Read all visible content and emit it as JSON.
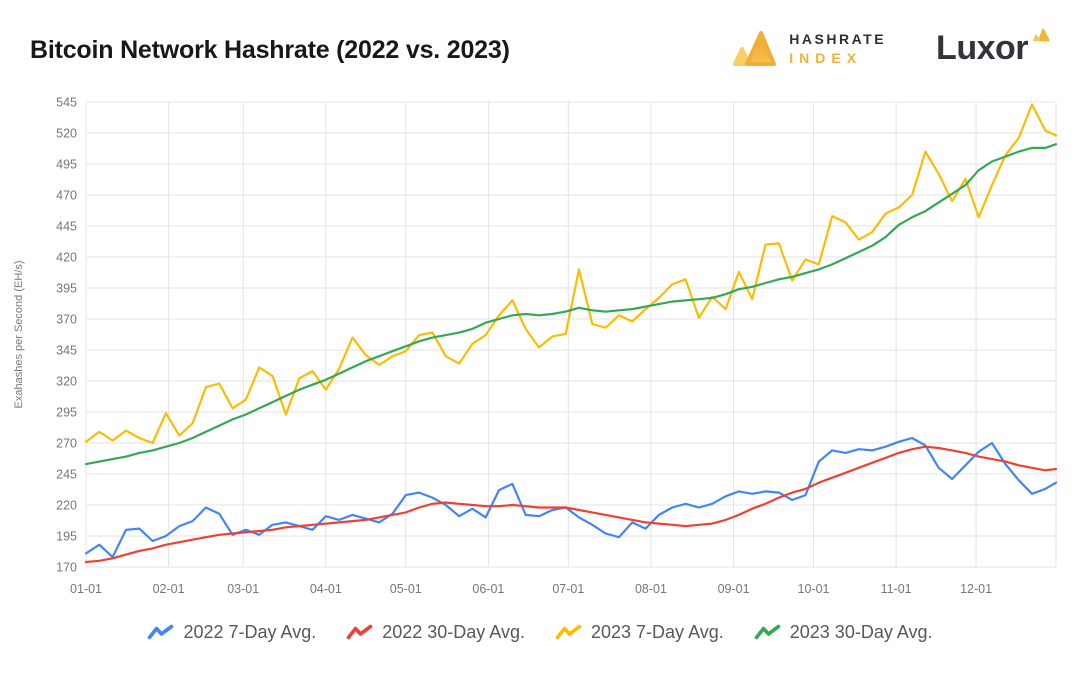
{
  "header": {
    "title": "Bitcoin Network Hashrate (2022 vs. 2023)",
    "hashrate_index_logo": {
      "line1": "HASHRATE",
      "line2": "INDEX",
      "gold": "#f0b034",
      "gold_light": "#f8cd66",
      "dark": "#2b2f36"
    },
    "luxor_logo": {
      "text": "Luxor",
      "dark": "#32333b",
      "gold": "#f2b632"
    }
  },
  "chart_data": {
    "type": "line",
    "title": "Bitcoin Network Hashrate (2022 vs. 2023)",
    "xlabel": "",
    "ylabel": "Exahashes per Second (EH/s)",
    "ylim": [
      170,
      545
    ],
    "grid": true,
    "legend_position": "bottom",
    "y_ticks": [
      170,
      195,
      220,
      245,
      270,
      295,
      320,
      345,
      370,
      395,
      420,
      445,
      470,
      495,
      520,
      545
    ],
    "x_tick_labels": [
      "01-01",
      "02-01",
      "03-01",
      "04-01",
      "05-01",
      "06-01",
      "07-01",
      "08-01",
      "09-01",
      "10-01",
      "11-01",
      "12-01"
    ],
    "x_dates": [
      "01-01",
      "01-06",
      "01-11",
      "01-16",
      "01-21",
      "01-26",
      "01-31",
      "02-05",
      "02-10",
      "02-15",
      "02-20",
      "02-25",
      "03-02",
      "03-07",
      "03-12",
      "03-17",
      "03-22",
      "03-27",
      "04-01",
      "04-06",
      "04-11",
      "04-16",
      "04-21",
      "04-26",
      "05-01",
      "05-06",
      "05-11",
      "05-16",
      "05-21",
      "05-26",
      "05-31",
      "06-05",
      "06-10",
      "06-15",
      "06-20",
      "06-25",
      "06-30",
      "07-05",
      "07-10",
      "07-15",
      "07-20",
      "07-25",
      "07-30",
      "08-04",
      "08-09",
      "08-14",
      "08-19",
      "08-24",
      "08-29",
      "09-03",
      "09-08",
      "09-13",
      "09-18",
      "09-23",
      "09-28",
      "10-03",
      "10-08",
      "10-13",
      "10-18",
      "10-23",
      "10-28",
      "11-02",
      "11-07",
      "11-12",
      "11-17",
      "11-22",
      "11-27",
      "12-02",
      "12-07",
      "12-12",
      "12-17",
      "12-22",
      "12-27",
      "12-31"
    ],
    "series": [
      {
        "name": "2022 7-Day Avg.",
        "color": "#4285f4",
        "values": [
          181,
          188,
          178,
          200,
          201,
          191,
          195,
          203,
          207,
          218,
          213,
          196,
          200,
          196,
          204,
          206,
          203,
          200,
          211,
          208,
          212,
          209,
          206,
          213,
          228,
          230,
          226,
          220,
          211,
          217,
          210,
          232,
          237,
          212,
          211,
          216,
          218,
          210,
          204,
          197,
          194,
          206,
          201,
          212,
          218,
          221,
          218,
          221,
          227,
          231,
          229,
          231,
          230,
          224,
          228,
          255,
          264,
          262,
          265,
          264,
          267,
          271,
          274,
          268,
          250,
          241,
          252,
          263,
          270,
          253,
          240,
          229,
          233,
          238
        ]
      },
      {
        "name": "2022 30-Day Avg.",
        "color": "#ea4335",
        "values": [
          174,
          175,
          177,
          180,
          183,
          185,
          188,
          190,
          192,
          194,
          196,
          197,
          198,
          199,
          200,
          202,
          203,
          204,
          205,
          206,
          207,
          208,
          210,
          212,
          214,
          218,
          221,
          222,
          221,
          220,
          219,
          219,
          220,
          219,
          218,
          218,
          218,
          216,
          214,
          212,
          210,
          208,
          206,
          205,
          204,
          203,
          204,
          205,
          208,
          212,
          217,
          221,
          226,
          230,
          233,
          238,
          242,
          246,
          250,
          254,
          258,
          262,
          265,
          267,
          266,
          264,
          262,
          259,
          257,
          255,
          252,
          250,
          248,
          249
        ]
      },
      {
        "name": "2023 7-Day Avg.",
        "color": "#fbbc05",
        "values": [
          271,
          279,
          272,
          280,
          274,
          270,
          294,
          276,
          286,
          315,
          318,
          298,
          305,
          331,
          324,
          293,
          322,
          328,
          313,
          330,
          355,
          341,
          333,
          340,
          344,
          357,
          359,
          340,
          334,
          350,
          357,
          373,
          385,
          362,
          347,
          356,
          358,
          410,
          366,
          363,
          373,
          368,
          378,
          387,
          398,
          402,
          371,
          388,
          378,
          408,
          386,
          430,
          431,
          401,
          418,
          414,
          453,
          448,
          434,
          440,
          455,
          460,
          470,
          505,
          487,
          465,
          483,
          452,
          478,
          502,
          516,
          543,
          522,
          518
        ]
      },
      {
        "name": "2023 30-Day Avg.",
        "color": "#34a853",
        "values": [
          253,
          255,
          257,
          259,
          262,
          264,
          267,
          270,
          274,
          279,
          284,
          289,
          293,
          298,
          303,
          308,
          313,
          317,
          321,
          326,
          331,
          336,
          340,
          344,
          348,
          352,
          355,
          357,
          359,
          362,
          367,
          370,
          373,
          374,
          373,
          374,
          376,
          379,
          377,
          376,
          377,
          378,
          380,
          382,
          384,
          385,
          386,
          387,
          390,
          394,
          396,
          399,
          402,
          404,
          407,
          410,
          414,
          419,
          424,
          429,
          436,
          446,
          452,
          457,
          464,
          471,
          478,
          490,
          497,
          501,
          505,
          508,
          508,
          511
        ]
      }
    ]
  }
}
